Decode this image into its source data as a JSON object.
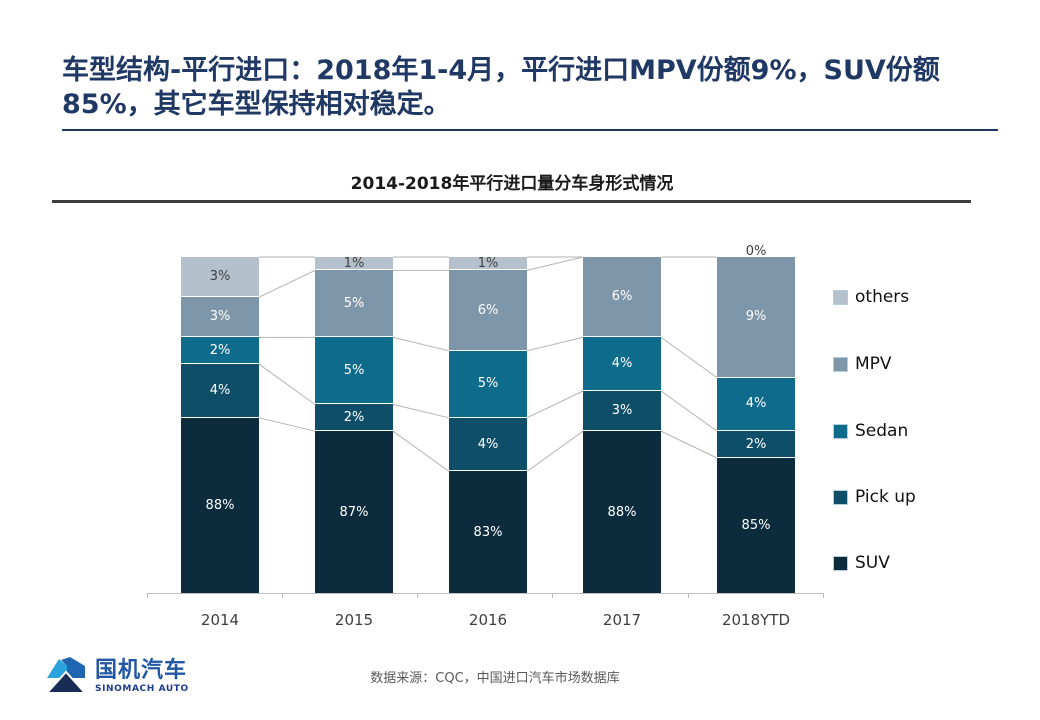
{
  "header": {
    "title": "车型结构-平行进口：2018年1-4月，平行进口MPV份额9%，SUV份额85%，其它车型保持相对稳定。"
  },
  "chart_data": {
    "type": "bar",
    "variant": "stacked-100-percent",
    "title": "2014-2018年平行进口量分车身形式情况",
    "categories": [
      "2014",
      "2015",
      "2016",
      "2017",
      "2018YTD"
    ],
    "unit": "%",
    "series": [
      {
        "name": "SUV",
        "color": "#0c2c3e",
        "values": [
          88,
          87,
          83,
          88,
          85
        ]
      },
      {
        "name": "Pick up",
        "color": "#0e4e69",
        "values": [
          4,
          2,
          4,
          3,
          2
        ]
      },
      {
        "name": "Sedan",
        "color": "#0f6b8c",
        "values": [
          2,
          5,
          5,
          4,
          4
        ]
      },
      {
        "name": "MPV",
        "color": "#7e96a9",
        "values": [
          3,
          5,
          6,
          6,
          9
        ]
      },
      {
        "name": "others",
        "color": "#b4c1cc",
        "values": [
          3,
          1,
          1,
          0,
          0
        ],
        "labels": [
          "3%",
          "1%",
          "1%",
          null,
          "0%"
        ],
        "label_color": "#3f3f3f"
      }
    ],
    "legend_position": "right",
    "legend_order_top_to_bottom": [
      "others",
      "MPV",
      "Sedan",
      "Pick up",
      "SUV"
    ],
    "data_label_color_default": "#ffffff",
    "connector_line_color": "#b3b3b3",
    "axis_color": "#bfbfbf",
    "ylim": [
      0,
      100
    ],
    "grid": false
  },
  "footer": {
    "source": "数据来源：CQC，中国进口汽车市场数据库",
    "logo_cn": "国机汽车",
    "logo_en": "SINOMACH AUTO"
  },
  "colors": {
    "header_accent": "#1f3864",
    "chart_rule": "#3d3d3d"
  }
}
